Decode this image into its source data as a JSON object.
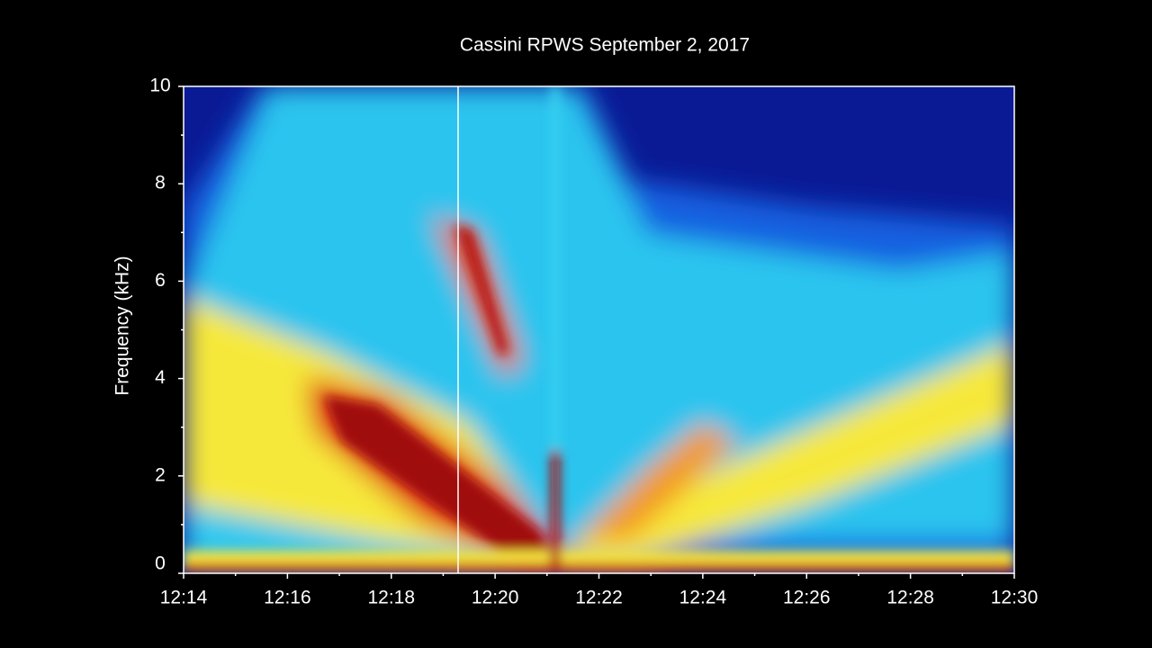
{
  "chart_data": {
    "type": "spectrogram",
    "title": "Cassini RPWS September 2, 2017",
    "y_label": "Frequency (kHz)",
    "xlim": [
      "12:14",
      "12:30"
    ],
    "xticks": [
      "12:14",
      "12:16",
      "12:18",
      "12:20",
      "12:22",
      "12:24",
      "12:26",
      "12:28",
      "12:30"
    ],
    "xminor_ticks": [
      "12:15",
      "12:17",
      "12:19",
      "12:21",
      "12:23",
      "12:25",
      "12:27",
      "12:29"
    ],
    "ylim": [
      0,
      10
    ],
    "yticks": [
      0,
      2,
      4,
      6,
      8,
      10
    ],
    "yminor_ticks": [
      1,
      3,
      5,
      7,
      9
    ]
  }
}
